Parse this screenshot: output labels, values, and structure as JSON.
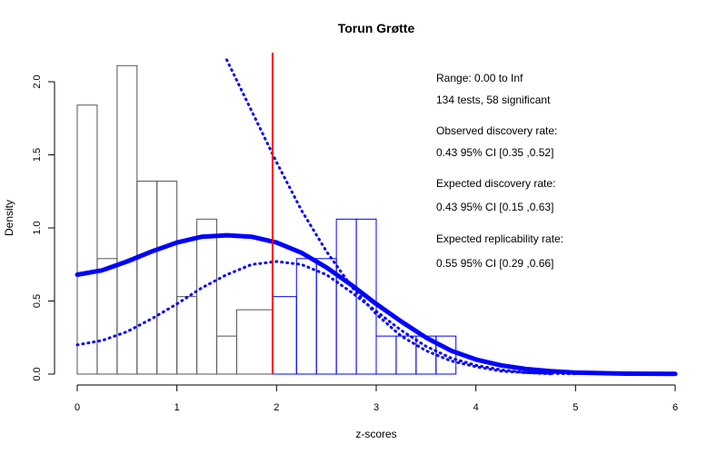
{
  "chart_data": {
    "type": "bar",
    "title": "Torun Grøtte",
    "xlabel": "z-scores",
    "ylabel": "Density",
    "xlim": [
      0,
      6
    ],
    "ylim": [
      0,
      2.2
    ],
    "x_ticks": [
      "0",
      "1",
      "2",
      "3",
      "4",
      "5",
      "6"
    ],
    "y_ticks": [
      "0.0",
      "0.5",
      "1.0",
      "1.5",
      "2.0"
    ],
    "critical_z": 1.96,
    "histogram_nonsignificant": {
      "color": "#555555",
      "bins": [
        {
          "x0": 0.0,
          "x1": 0.2,
          "density": 1.84
        },
        {
          "x0": 0.2,
          "x1": 0.4,
          "density": 0.79
        },
        {
          "x0": 0.4,
          "x1": 0.6,
          "density": 2.11
        },
        {
          "x0": 0.6,
          "x1": 0.8,
          "density": 1.32
        },
        {
          "x0": 0.8,
          "x1": 1.0,
          "density": 1.32
        },
        {
          "x0": 1.0,
          "x1": 1.2,
          "density": 0.53
        },
        {
          "x0": 1.2,
          "x1": 1.4,
          "density": 1.06
        },
        {
          "x0": 1.4,
          "x1": 1.6,
          "density": 0.26
        },
        {
          "x0": 1.6,
          "x1": 1.96,
          "density": 0.44
        }
      ]
    },
    "histogram_significant": {
      "color": "#0000ff",
      "bins": [
        {
          "x0": 1.96,
          "x1": 2.2,
          "density": 0.53
        },
        {
          "x0": 2.2,
          "x1": 2.4,
          "density": 0.79
        },
        {
          "x0": 2.4,
          "x1": 2.6,
          "density": 0.79
        },
        {
          "x0": 2.6,
          "x1": 2.8,
          "density": 1.06
        },
        {
          "x0": 2.8,
          "x1": 3.0,
          "density": 1.06
        },
        {
          "x0": 3.0,
          "x1": 3.2,
          "density": 0.26
        },
        {
          "x0": 3.2,
          "x1": 3.4,
          "density": 0.26
        },
        {
          "x0": 3.4,
          "x1": 3.6,
          "density": 0.26
        },
        {
          "x0": 3.6,
          "x1": 3.8,
          "density": 0.26
        }
      ]
    },
    "series": [
      {
        "style": "solid-thick",
        "color": "#0000ff",
        "x": [
          0,
          0.25,
          0.5,
          0.75,
          1.0,
          1.25,
          1.5,
          1.75,
          2.0,
          2.25,
          2.5,
          2.75,
          3.0,
          3.25,
          3.5,
          3.75,
          4.0,
          4.25,
          4.5,
          4.75,
          5.0,
          5.5,
          6.0
        ],
        "y": [
          0.68,
          0.71,
          0.77,
          0.84,
          0.9,
          0.94,
          0.95,
          0.94,
          0.9,
          0.83,
          0.73,
          0.61,
          0.48,
          0.36,
          0.25,
          0.16,
          0.1,
          0.06,
          0.035,
          0.02,
          0.01,
          0.003,
          0.001
        ]
      },
      {
        "style": "dotted",
        "color": "#0000ff",
        "x": [
          0,
          0.25,
          0.5,
          0.75,
          1.0,
          1.25,
          1.5,
          1.75,
          2.0,
          2.25,
          2.5,
          2.75,
          3.0,
          3.25,
          3.5,
          3.75,
          4.0,
          4.25,
          4.5,
          4.75,
          5.0
        ],
        "y": [
          0.2,
          0.23,
          0.29,
          0.38,
          0.48,
          0.59,
          0.68,
          0.75,
          0.77,
          0.75,
          0.68,
          0.56,
          0.43,
          0.3,
          0.19,
          0.11,
          0.06,
          0.03,
          0.01,
          0.005,
          0.002
        ]
      },
      {
        "style": "dotted",
        "color": "#0000ff",
        "x": [
          1.5,
          1.75,
          2.0,
          2.25,
          2.5,
          2.75,
          3.0,
          3.25,
          3.5,
          3.75,
          4.0,
          4.25,
          4.5,
          4.75
        ],
        "y": [
          2.15,
          1.8,
          1.45,
          1.12,
          0.84,
          0.6,
          0.41,
          0.26,
          0.16,
          0.09,
          0.05,
          0.02,
          0.01,
          0.002
        ]
      }
    ],
    "annotations": [
      "Range: 0.00 to Inf",
      "134 tests, 58 significant",
      "Observed discovery rate:",
      "0.43  95% CI [0.35 ,0.52]",
      "Expected discovery rate:",
      "0.43  95% CI [0.15 ,0.63]",
      "Expected replicability rate:",
      "0.55  95% CI [0.29 ,0.66]"
    ],
    "colors": {
      "critical_line": "#ff0000",
      "curve": "#0000ff",
      "nonsig_bar": "#555555",
      "sig_bar": "#0000ff",
      "axis": "#000000"
    }
  }
}
